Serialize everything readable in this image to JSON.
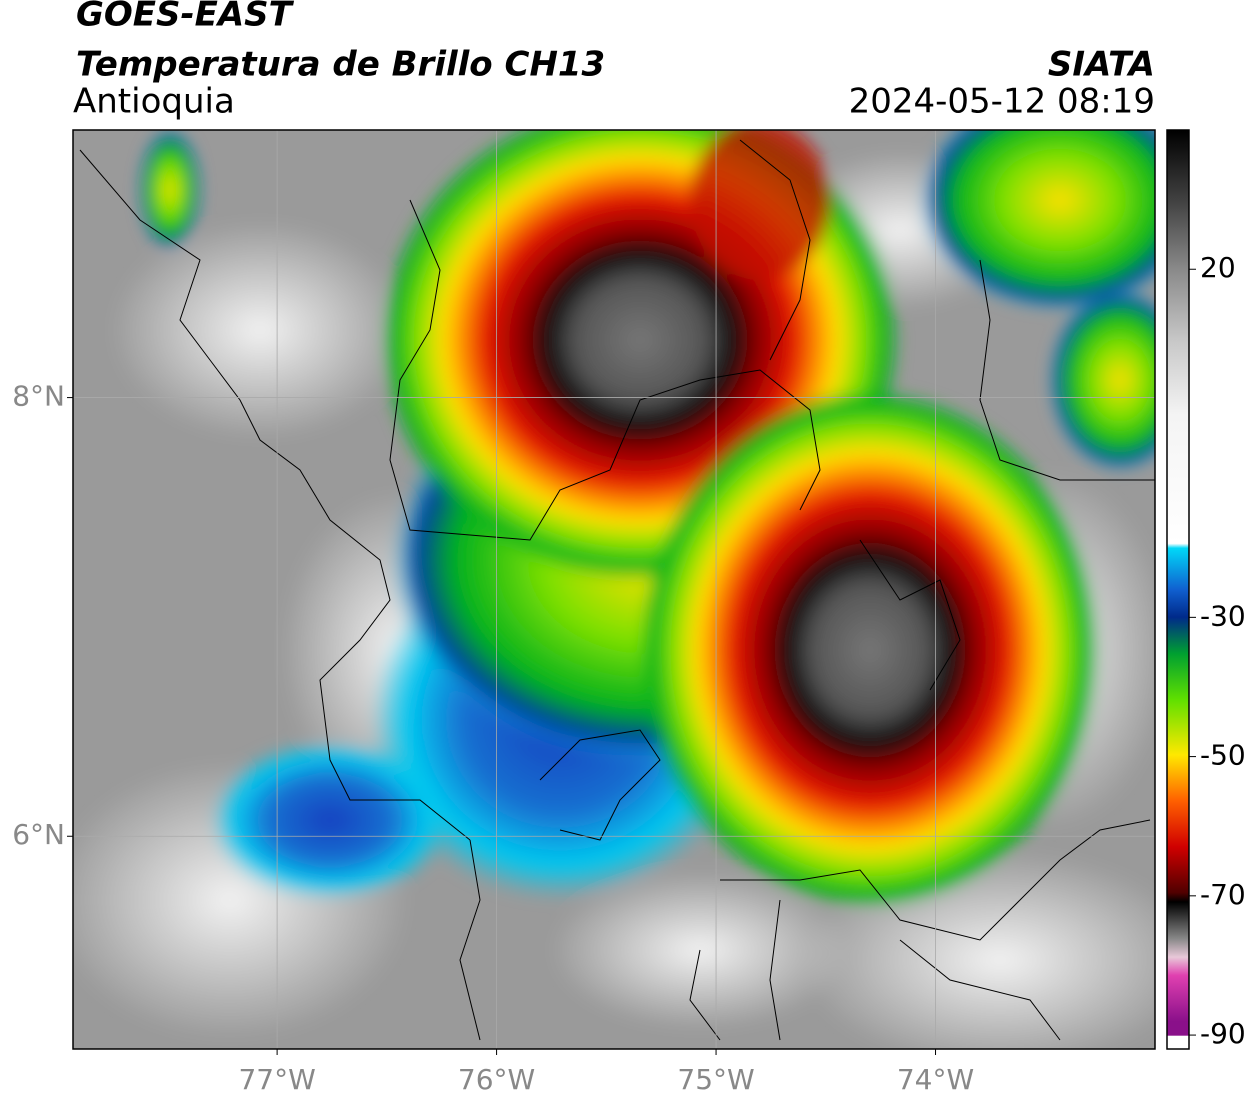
{
  "header": {
    "title": "GOES-EAST",
    "subtitle": "Temperatura de Brillo CH13",
    "region": "Antioquia",
    "source": "SIATA",
    "timestamp": "2024-05-12 08:19"
  },
  "map": {
    "xlim": [
      -77.93,
      -73.0
    ],
    "ylim": [
      5.03,
      9.22
    ],
    "xticks": [
      {
        "value": -77,
        "label": "77°W"
      },
      {
        "value": -76,
        "label": "76°W"
      },
      {
        "value": -75,
        "label": "75°W"
      },
      {
        "value": -74,
        "label": "74°W"
      }
    ],
    "yticks": [
      {
        "value": 6,
        "label": "6°N"
      },
      {
        "value": 8,
        "label": "8°N"
      }
    ],
    "grid": true
  },
  "colorbar": {
    "lim": [
      -92,
      40
    ],
    "ticks": [
      -90,
      -70,
      -50,
      -30,
      20
    ]
  }
}
